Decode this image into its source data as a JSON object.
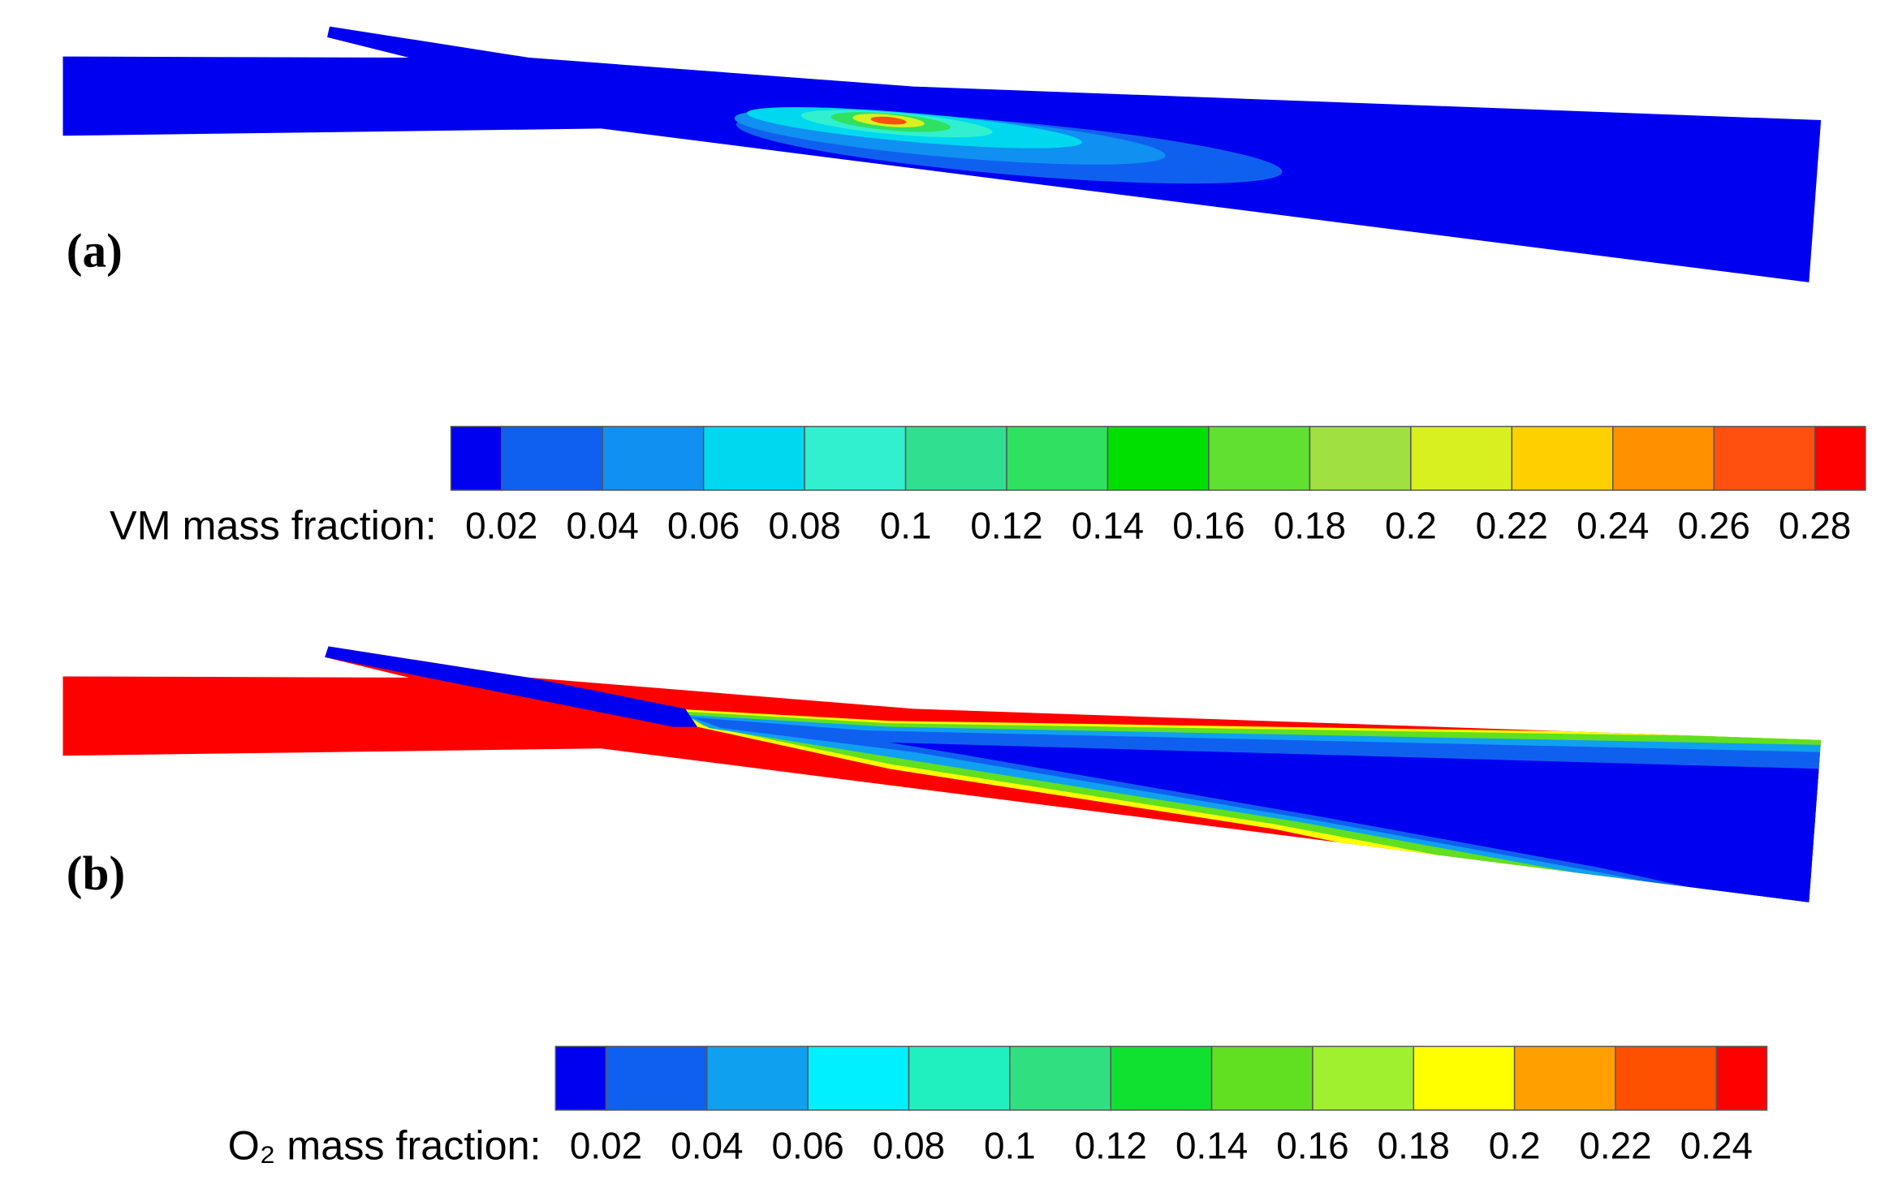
{
  "panels": [
    {
      "label": "(a)",
      "colorbar": {
        "title": "VM mass fraction:",
        "lim": [
          0.01,
          0.29
        ],
        "ticks": [
          0.02,
          0.04,
          0.06,
          0.08,
          0.1,
          0.12,
          0.14,
          0.16,
          0.18,
          0.2,
          0.22,
          0.24,
          0.26,
          0.28
        ],
        "colors": [
          "#0000f0",
          "#1060f0",
          "#1090f0",
          "#00d8f0",
          "#30f0d0",
          "#30e090",
          "#30e060",
          "#00e000",
          "#60e030",
          "#a0e040",
          "#d8f020",
          "#ffd000",
          "#ff9000",
          "#ff5010",
          "#ff0000"
        ]
      }
    },
    {
      "label": "(b)",
      "colorbar": {
        "title": "O₂ mass fraction:",
        "lim": [
          0.01,
          0.25
        ],
        "ticks": [
          0.02,
          0.04,
          0.06,
          0.08,
          0.1,
          0.12,
          0.14,
          0.16,
          0.18,
          0.2,
          0.22,
          0.24
        ],
        "colors": [
          "#0000f0",
          "#1060f0",
          "#10a0f0",
          "#00f0ff",
          "#20f0c0",
          "#30e080",
          "#10e030",
          "#60e020",
          "#a0f030",
          "#ffff00",
          "#ffa000",
          "#ff5000",
          "#ff0000"
        ]
      }
    }
  ]
}
